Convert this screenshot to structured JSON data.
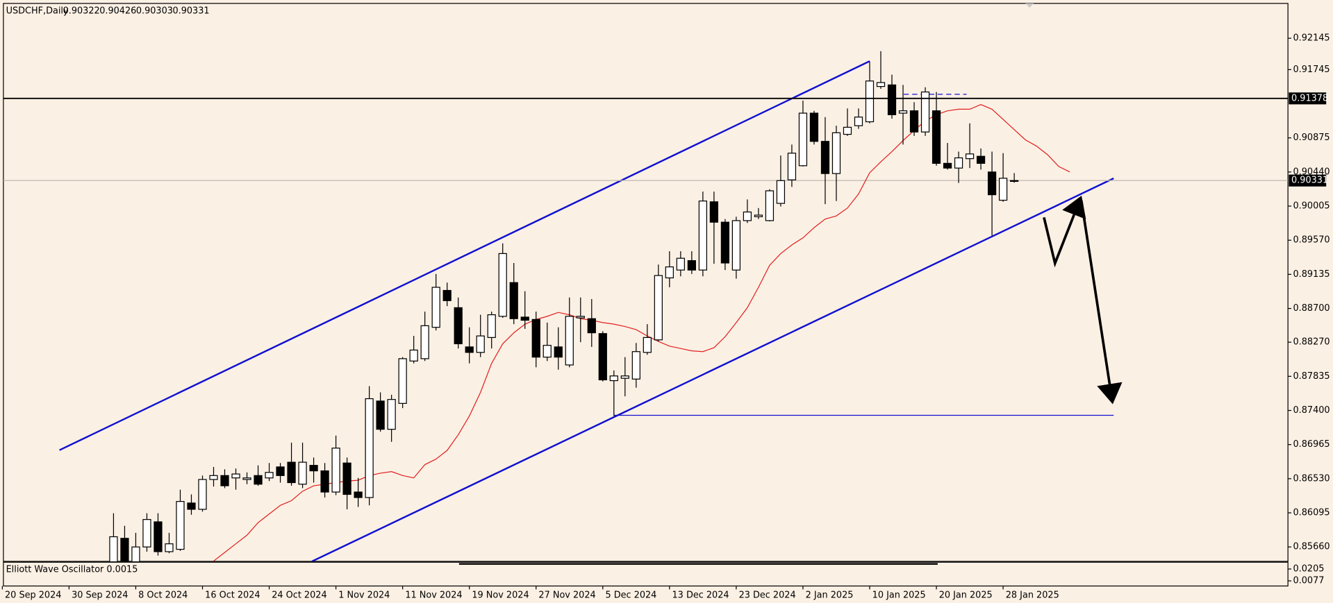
{
  "chart_data": {
    "type": "candlestick",
    "title": "USDCHF,Daily",
    "up_color": "#ffffff",
    "down_color": "#000000",
    "categories": [
      "20 Sep 2024",
      null,
      null,
      null,
      null,
      null,
      "30 Sep 2024",
      null,
      null,
      null,
      null,
      null,
      "8 Oct 2024",
      null,
      null,
      null,
      null,
      null,
      "16 Oct 2024",
      null,
      null,
      null,
      null,
      null,
      "24 Oct 2024",
      null,
      null,
      null,
      null,
      null,
      "1 Nov 2024",
      null,
      null,
      null,
      null,
      null,
      "11 Nov 2024",
      null,
      null,
      null,
      null,
      null,
      "19 Nov 2024",
      null,
      null,
      null,
      null,
      null,
      "27 Nov 2024",
      null,
      null,
      null,
      null,
      null,
      "5 Dec 2024",
      null,
      null,
      null,
      null,
      null,
      "13 Dec 2024",
      null,
      null,
      null,
      null,
      null,
      "23 Dec 2024",
      null,
      null,
      null,
      null,
      null,
      "2 Jan 2025",
      null,
      null,
      null,
      null,
      null,
      "10 Jan 2025",
      null,
      null,
      null,
      null,
      null,
      "20 Jan 2025",
      null,
      null,
      null,
      null,
      null,
      "28 Jan 2025",
      null,
      null,
      null,
      null,
      null,
      null,
      null,
      null,
      null,
      null,
      null,
      null,
      null,
      null,
      null,
      null,
      null,
      null,
      null,
      null,
      null,
      null,
      null,
      null,
      null
    ],
    "open": [
      null,
      null,
      null,
      null,
      null,
      null,
      null,
      null,
      null,
      null,
      0.8544,
      0.8577,
      0.8544,
      0.8566,
      0.8598,
      0.856,
      0.8563,
      0.8622,
      0.8614,
      0.8652,
      0.8657,
      0.8654,
      0.8652,
      0.8657,
      0.8654,
      0.8668,
      0.8674,
      0.8646,
      0.867,
      0.8663,
      0.8636,
      0.8673,
      0.8636,
      0.8629,
      0.8752,
      0.8716,
      0.8749,
      0.8803,
      0.8806,
      0.8846,
      0.8893,
      0.8871,
      0.8821,
      0.8814,
      0.8833,
      0.886,
      0.8903,
      0.8859,
      0.8856,
      0.8808,
      0.8821,
      0.8798,
      0.8858,
      0.8857,
      0.8838,
      0.8778,
      0.8781,
      0.878,
      0.8814,
      0.883,
      0.8909,
      0.8919,
      0.8931,
      0.8919,
      0.9006,
      0.898,
      0.8919,
      0.8982,
      0.8987,
      0.8982,
      0.9004,
      0.9034,
      0.9052,
      0.9119,
      0.9083,
      0.9042,
      0.9092,
      0.9103,
      0.9108,
      0.9153,
      0.9155,
      0.9119,
      0.9122,
      0.9095,
      0.9122,
      0.9055,
      0.9049,
      0.9061,
      0.9064,
      0.9044,
      0.9008,
      0.90322,
      null,
      null,
      null,
      null,
      null,
      null,
      null,
      null,
      null,
      null,
      null,
      null,
      null,
      null,
      null,
      null,
      null,
      null,
      null,
      null,
      null,
      null,
      null,
      null
    ],
    "high": [
      null,
      null,
      null,
      null,
      null,
      null,
      null,
      null,
      null,
      null,
      0.8609,
      0.8593,
      0.8584,
      0.8609,
      0.8609,
      0.8584,
      0.8639,
      0.8633,
      0.8657,
      0.8668,
      0.8665,
      0.8666,
      0.8661,
      0.867,
      0.8673,
      0.8673,
      0.8699,
      0.8699,
      0.868,
      0.8673,
      0.8708,
      0.868,
      0.8654,
      0.8771,
      0.8763,
      0.876,
      0.8808,
      0.8835,
      0.8866,
      0.8914,
      0.8903,
      0.8884,
      0.8846,
      0.8862,
      0.8866,
      0.8953,
      0.8928,
      0.8892,
      0.8866,
      0.8852,
      0.8846,
      0.8884,
      0.8884,
      0.8882,
      0.8841,
      0.8791,
      0.8808,
      0.8826,
      0.885,
      0.8926,
      0.8943,
      0.8943,
      0.8943,
      0.9019,
      0.9019,
      0.8984,
      0.8987,
      0.9009,
      0.8998,
      0.9022,
      0.9065,
      0.9079,
      0.9135,
      0.9122,
      0.9114,
      0.9103,
      0.9125,
      0.9125,
      0.9185,
      0.9198,
      0.9168,
      0.9155,
      0.9133,
      0.9152,
      0.9146,
      0.9081,
      0.907,
      0.9106,
      0.9074,
      0.907,
      0.9068,
      0.90426,
      null,
      null,
      null,
      null,
      null,
      null,
      null,
      null,
      null,
      null,
      null,
      null,
      null,
      null,
      null,
      null,
      null,
      null,
      null,
      null,
      null,
      null,
      null,
      null
    ],
    "low": [
      null,
      null,
      null,
      null,
      null,
      null,
      null,
      null,
      null,
      null,
      0.8538,
      0.8538,
      0.8541,
      0.856,
      0.8555,
      0.8558,
      0.8561,
      0.8607,
      0.8611,
      0.8643,
      0.8641,
      0.8639,
      0.8646,
      0.8644,
      0.865,
      0.8648,
      0.8644,
      0.8641,
      0.8648,
      0.8629,
      0.8632,
      0.8614,
      0.8617,
      0.8619,
      0.8713,
      0.87,
      0.8743,
      0.88,
      0.8803,
      0.8842,
      0.8873,
      0.8819,
      0.88,
      0.8808,
      0.8819,
      0.8858,
      0.885,
      0.8844,
      0.8795,
      0.8803,
      0.8792,
      0.8795,
      0.8827,
      0.8821,
      0.8777,
      0.8733,
      0.8758,
      0.8769,
      0.8811,
      0.8828,
      0.8897,
      0.8911,
      0.8914,
      0.8911,
      0.8927,
      0.8919,
      0.8908,
      0.8979,
      0.8984,
      0.8981,
      0.9,
      0.9025,
      0.9051,
      0.9079,
      0.9003,
      0.9007,
      0.909,
      0.9099,
      0.9106,
      0.915,
      0.9112,
      0.9079,
      0.909,
      0.909,
      0.9052,
      0.9047,
      0.903,
      0.9049,
      0.9047,
      0.8963,
      0.9006,
      0.90303,
      null,
      null,
      null,
      null,
      null,
      null,
      null,
      null,
      null,
      null,
      null,
      null,
      null,
      null,
      null,
      null,
      null,
      null,
      null,
      null,
      null,
      null,
      null,
      null
    ],
    "close": [
      null,
      null,
      null,
      null,
      null,
      null,
      null,
      null,
      null,
      null,
      0.8579,
      0.8544,
      0.8566,
      0.8601,
      0.856,
      0.857,
      0.8624,
      0.8614,
      0.8652,
      0.8657,
      0.8644,
      0.8659,
      0.8654,
      0.8646,
      0.8661,
      0.8657,
      0.8648,
      0.8674,
      0.8663,
      0.8636,
      0.8692,
      0.8633,
      0.8629,
      0.8755,
      0.8716,
      0.8754,
      0.8806,
      0.8817,
      0.8848,
      0.8897,
      0.888,
      0.8825,
      0.8814,
      0.8835,
      0.8862,
      0.894,
      0.8857,
      0.8855,
      0.8808,
      0.8823,
      0.8808,
      0.886,
      0.886,
      0.8839,
      0.8779,
      0.8784,
      0.8784,
      0.8815,
      0.8833,
      0.8912,
      0.8923,
      0.8934,
      0.8919,
      0.9007,
      0.898,
      0.8928,
      0.8982,
      0.8993,
      0.8989,
      0.902,
      0.9033,
      0.9068,
      0.9119,
      0.9083,
      0.9042,
      0.9094,
      0.9101,
      0.9114,
      0.916,
      0.9158,
      0.9117,
      0.9122,
      0.9095,
      0.9146,
      0.9055,
      0.9049,
      0.9062,
      0.9067,
      0.9055,
      0.9015,
      0.9036,
      0.90331,
      null,
      null,
      null,
      null,
      null,
      null,
      null,
      null,
      null,
      null,
      null,
      null,
      null,
      null,
      null,
      null,
      null,
      null,
      null,
      null,
      null,
      null,
      null,
      null
    ],
    "moving_average": {
      "color": "#e02020",
      "values": [
        null,
        null,
        null,
        null,
        null,
        null,
        null,
        null,
        null,
        null,
        null,
        null,
        null,
        null,
        null,
        null,
        null,
        null,
        null,
        0.8548,
        0.8559,
        0.857,
        0.8581,
        0.8597,
        0.8608,
        0.8619,
        0.8625,
        0.8637,
        0.8644,
        0.8646,
        0.8648,
        0.865,
        0.8651,
        0.8657,
        0.866,
        0.8662,
        0.8657,
        0.8654,
        0.8671,
        0.8678,
        0.8689,
        0.8709,
        0.8733,
        0.8763,
        0.88,
        0.8825,
        0.8839,
        0.885,
        0.8856,
        0.886,
        0.8865,
        0.8862,
        0.8857,
        0.8855,
        0.8852,
        0.885,
        0.8847,
        0.8843,
        0.8835,
        0.8828,
        0.8822,
        0.8819,
        0.8816,
        0.8815,
        0.882,
        0.8834,
        0.8852,
        0.8871,
        0.8897,
        0.8925,
        0.894,
        0.8951,
        0.896,
        0.8973,
        0.8984,
        0.8988,
        0.8998,
        0.9016,
        0.9043,
        0.9057,
        0.907,
        0.9084,
        0.9097,
        0.9109,
        0.9117,
        0.9122,
        0.9124,
        0.9124,
        0.913,
        0.9124,
        0.9111,
        0.9098,
        0.9085,
        0.9077,
        0.9066,
        0.9051,
        0.9044,
        null,
        null,
        null,
        null,
        null,
        null,
        null,
        null,
        null,
        null,
        null,
        null,
        null,
        null,
        null,
        null,
        null,
        null,
        null
      ]
    },
    "horizontal_line": 0.91378,
    "bid": 0.90331,
    "ylim": [
      0.85487,
      0.92578
    ],
    "yticks": [
      0.92145,
      0.91745,
      0.90875,
      {
        "value": 0.9044,
        "label": "0.90440"
      },
      0.90005,
      {
        "value": 0.8957,
        "label": "0.89570"
      },
      0.89135,
      {
        "value": 0.887,
        "label": "0.88700"
      },
      {
        "value": 0.8827,
        "label": "0.88270"
      },
      0.87835,
      {
        "value": 0.874,
        "label": "0.87400"
      },
      0.86965,
      {
        "value": 0.8653,
        "label": "0.86530"
      },
      0.86095,
      {
        "value": 0.8566,
        "label": "0.85660"
      }
    ],
    "oscillator": {
      "title": "Elliott Wave Oscillator 0.0015",
      "ylim": [
        0.0022,
        0.0278
      ],
      "yticks": [
        0.0205,
        0.0077
      ]
    }
  }
}
